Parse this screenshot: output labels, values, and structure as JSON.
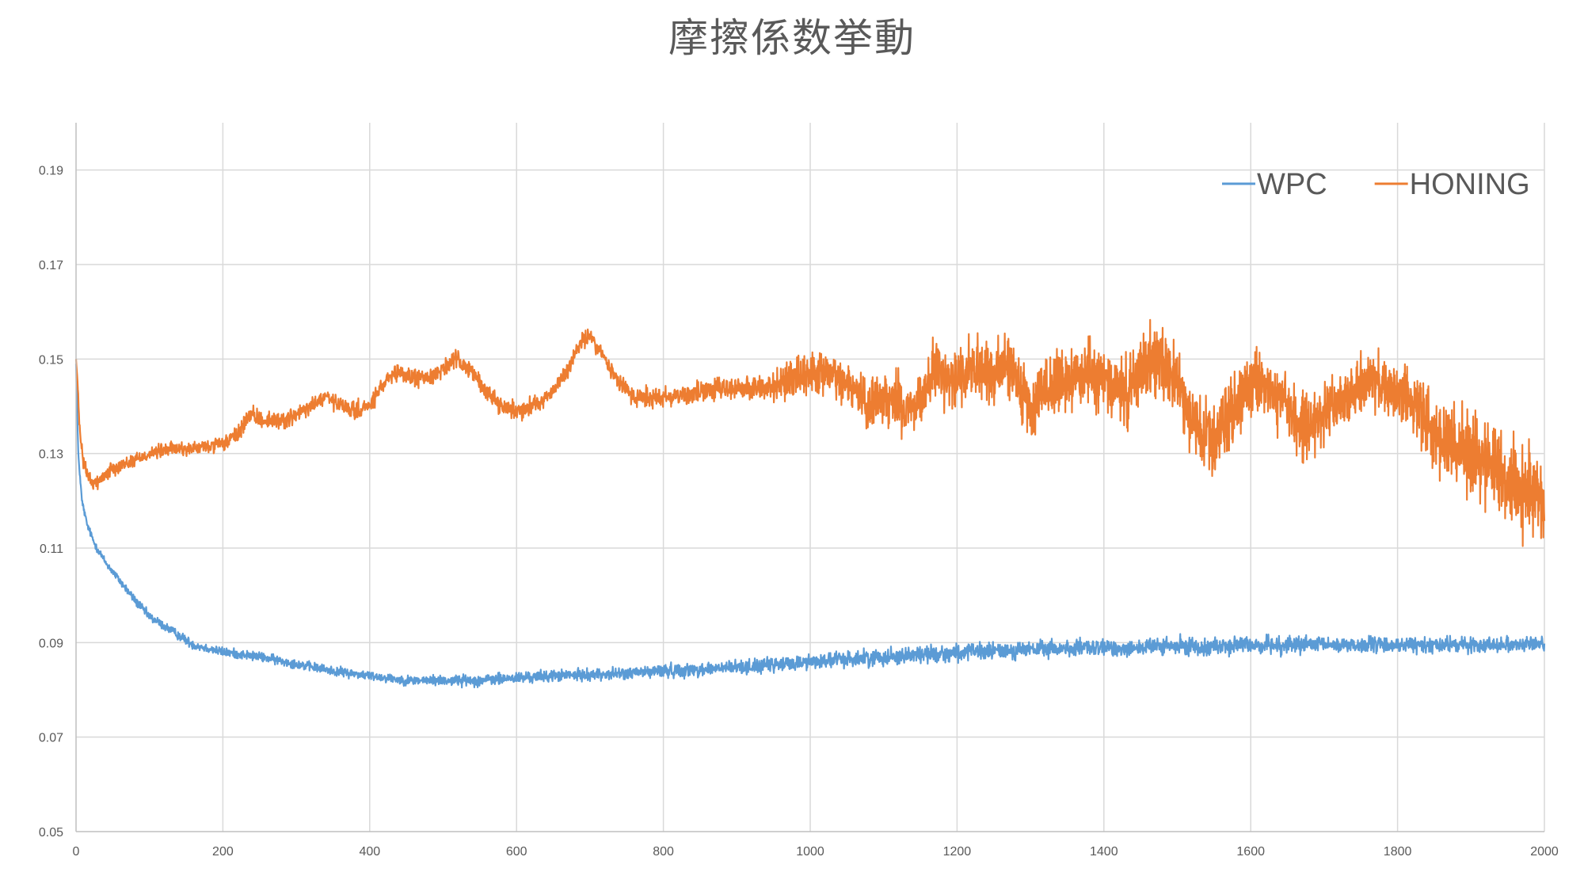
{
  "chart_data": {
    "type": "line",
    "title": "摩擦係数挙動",
    "xlabel": "",
    "ylabel": "",
    "xlim": [
      0,
      2000
    ],
    "ylim": [
      0.05,
      0.2
    ],
    "x_ticks": [
      "0",
      "200",
      "400",
      "600",
      "800",
      "1000",
      "1200",
      "1400",
      "1600",
      "1800",
      "2000"
    ],
    "y_ticks": [
      "0.05",
      "0.07",
      "0.09",
      "0.11",
      "0.13",
      "0.15",
      "0.17",
      "0.19"
    ],
    "grid": true,
    "legend_position": "top-right",
    "series": [
      {
        "name": "WPC",
        "color": "#5b9bd5",
        "x": [
          0,
          3,
          8,
          15,
          25,
          40,
          60,
          80,
          100,
          130,
          160,
          200,
          250,
          300,
          350,
          400,
          450,
          500,
          550,
          600,
          650,
          700,
          750,
          800,
          850,
          900,
          950,
          1000,
          1050,
          1100,
          1150,
          1200,
          1250,
          1300,
          1350,
          1400,
          1450,
          1500,
          1550,
          1600,
          1650,
          1700,
          1750,
          1800,
          1850,
          1900,
          1950,
          2000
        ],
        "y": [
          0.149,
          0.13,
          0.12,
          0.115,
          0.111,
          0.107,
          0.103,
          0.099,
          0.0955,
          0.0925,
          0.0895,
          0.088,
          0.087,
          0.0855,
          0.084,
          0.083,
          0.082,
          0.082,
          0.082,
          0.0825,
          0.083,
          0.0832,
          0.0835,
          0.084,
          0.0843,
          0.0848,
          0.0852,
          0.086,
          0.0865,
          0.087,
          0.0875,
          0.0878,
          0.0882,
          0.0885,
          0.0888,
          0.0888,
          0.089,
          0.0892,
          0.0892,
          0.0895,
          0.0895,
          0.0895,
          0.0895,
          0.0895,
          0.0895,
          0.0895,
          0.0897,
          0.0897
        ],
        "noise": [
          0.0,
          0.0005,
          0.0006,
          0.0006,
          0.0007,
          0.0007,
          0.0007,
          0.0008,
          0.0008,
          0.0008,
          0.0008,
          0.0008,
          0.0008,
          0.0008,
          0.0008,
          0.0008,
          0.0008,
          0.0009,
          0.001,
          0.001,
          0.001,
          0.001,
          0.001,
          0.0012,
          0.0012,
          0.0012,
          0.0013,
          0.0013,
          0.0014,
          0.0015,
          0.0015,
          0.0015,
          0.0015,
          0.0015,
          0.0015,
          0.0015,
          0.0015,
          0.0015,
          0.0015,
          0.0015,
          0.0015,
          0.0014,
          0.0014,
          0.0013,
          0.0013,
          0.0013,
          0.0013,
          0.0013
        ]
      },
      {
        "name": "HONING",
        "color": "#ed7d31",
        "x": [
          0,
          2,
          5,
          10,
          20,
          30,
          50,
          70,
          100,
          130,
          160,
          200,
          220,
          235,
          260,
          280,
          300,
          320,
          340,
          360,
          380,
          400,
          420,
          440,
          460,
          480,
          500,
          520,
          535,
          560,
          580,
          600,
          620,
          650,
          670,
          690,
          700,
          720,
          740,
          760,
          800,
          850,
          900,
          950,
          970,
          1000,
          1020,
          1050,
          1080,
          1100,
          1130,
          1150,
          1170,
          1200,
          1220,
          1250,
          1270,
          1300,
          1320,
          1350,
          1380,
          1400,
          1430,
          1450,
          1470,
          1500,
          1530,
          1560,
          1580,
          1600,
          1620,
          1650,
          1670,
          1700,
          1730,
          1750,
          1780,
          1800,
          1830,
          1850,
          1900,
          1950,
          2000
        ],
        "y": [
          0.15,
          0.145,
          0.135,
          0.128,
          0.124,
          0.124,
          0.127,
          0.128,
          0.13,
          0.131,
          0.131,
          0.132,
          0.134,
          0.138,
          0.137,
          0.137,
          0.138,
          0.14,
          0.142,
          0.14,
          0.139,
          0.14,
          0.145,
          0.147,
          0.146,
          0.146,
          0.148,
          0.15,
          0.148,
          0.143,
          0.14,
          0.139,
          0.14,
          0.143,
          0.148,
          0.154,
          0.155,
          0.15,
          0.145,
          0.142,
          0.142,
          0.143,
          0.144,
          0.144,
          0.145,
          0.147,
          0.147,
          0.145,
          0.14,
          0.142,
          0.14,
          0.142,
          0.148,
          0.145,
          0.149,
          0.147,
          0.149,
          0.139,
          0.144,
          0.145,
          0.147,
          0.146,
          0.142,
          0.148,
          0.15,
          0.145,
          0.133,
          0.135,
          0.139,
          0.146,
          0.145,
          0.14,
          0.135,
          0.138,
          0.142,
          0.144,
          0.145,
          0.143,
          0.14,
          0.133,
          0.13,
          0.125,
          0.12
        ],
        "noise": [
          0.0,
          0.001,
          0.001,
          0.001,
          0.0012,
          0.0012,
          0.0012,
          0.0012,
          0.0012,
          0.0012,
          0.0012,
          0.0012,
          0.0015,
          0.0015,
          0.0015,
          0.0015,
          0.0015,
          0.0015,
          0.0015,
          0.0015,
          0.0015,
          0.0015,
          0.0015,
          0.0015,
          0.0015,
          0.0015,
          0.0015,
          0.0015,
          0.0015,
          0.0015,
          0.0015,
          0.0015,
          0.0015,
          0.0015,
          0.0015,
          0.0015,
          0.0015,
          0.0015,
          0.0017,
          0.002,
          0.002,
          0.002,
          0.002,
          0.0022,
          0.0025,
          0.0028,
          0.003,
          0.003,
          0.003,
          0.0035,
          0.0035,
          0.0035,
          0.004,
          0.004,
          0.004,
          0.004,
          0.004,
          0.0035,
          0.004,
          0.004,
          0.004,
          0.004,
          0.0045,
          0.0045,
          0.0045,
          0.0045,
          0.005,
          0.005,
          0.005,
          0.004,
          0.004,
          0.0045,
          0.0045,
          0.004,
          0.0038,
          0.0035,
          0.0035,
          0.0035,
          0.004,
          0.0045,
          0.005,
          0.0055,
          0.0055
        ]
      }
    ]
  }
}
